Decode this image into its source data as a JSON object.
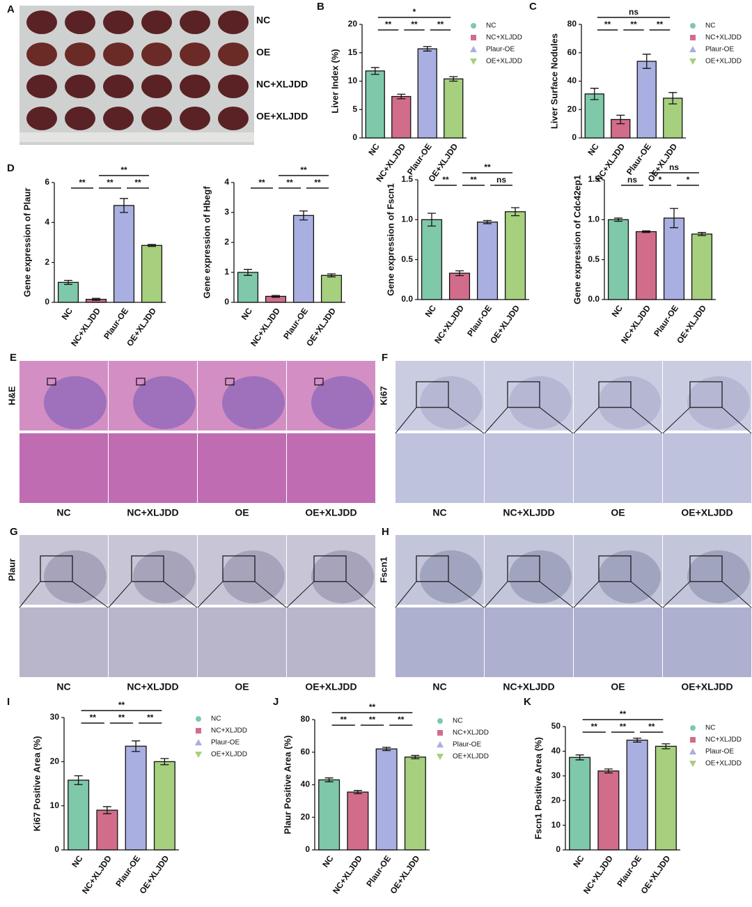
{
  "chart_data": [
    {
      "type": "bar",
      "panel": "B",
      "y_label": "Liver Index (%)",
      "categories": [
        "NC",
        "NC+XLJDD",
        "Plaur-OE",
        "OE+XLJDD"
      ],
      "values": [
        11.8,
        7.3,
        15.7,
        10.4
      ],
      "errors": [
        0.6,
        0.4,
        0.4,
        0.4
      ],
      "colors": [
        "#7fc8a9",
        "#d16d8a",
        "#a9afe0",
        "#a6cf7e"
      ],
      "ylim": [
        0,
        20
      ],
      "yticks": [
        0,
        5,
        10,
        15,
        20
      ],
      "legend": true,
      "significance": [
        {
          "groups": [
            "NC",
            "NC+XLJDD"
          ],
          "label": "**"
        },
        {
          "groups": [
            "NC+XLJDD",
            "Plaur-OE"
          ],
          "label": "**"
        },
        {
          "groups": [
            "Plaur-OE",
            "OE+XLJDD"
          ],
          "label": "**"
        },
        {
          "groups": [
            "NC",
            "OE+XLJDD"
          ],
          "label": "*"
        }
      ]
    },
    {
      "type": "bar",
      "panel": "C",
      "y_label": "Liver Surface Nodules",
      "categories": [
        "NC",
        "NC+XLJDD",
        "Plaur-OE",
        "OE+XLJDD"
      ],
      "values": [
        31,
        13,
        54,
        28
      ],
      "errors": [
        4,
        3,
        5,
        4
      ],
      "colors": [
        "#7fc8a9",
        "#d16d8a",
        "#a9afe0",
        "#a6cf7e"
      ],
      "ylim": [
        0,
        80
      ],
      "yticks": [
        0,
        20,
        40,
        60,
        80
      ],
      "legend": true,
      "significance": [
        {
          "groups": [
            "NC",
            "NC+XLJDD"
          ],
          "label": "**"
        },
        {
          "groups": [
            "NC+XLJDD",
            "Plaur-OE"
          ],
          "label": "**"
        },
        {
          "groups": [
            "Plaur-OE",
            "OE+XLJDD"
          ],
          "label": "**"
        },
        {
          "groups": [
            "NC",
            "OE+XLJDD"
          ],
          "label": "ns"
        }
      ]
    },
    {
      "type": "bar",
      "panel": "D",
      "y_label": "Gene expression of Plaur",
      "categories": [
        "NC",
        "NC+XLJDD",
        "Plaur-OE",
        "OE+XLJDD"
      ],
      "values": [
        1.0,
        0.15,
        4.85,
        2.85
      ],
      "errors": [
        0.1,
        0.05,
        0.35,
        0.05
      ],
      "colors": [
        "#7fc8a9",
        "#d16d8a",
        "#a9afe0",
        "#a6cf7e"
      ],
      "ylim": [
        0,
        6
      ],
      "yticks": [
        0,
        2,
        4,
        6
      ],
      "legend": false,
      "significance": [
        {
          "groups": [
            "NC",
            "NC+XLJDD"
          ],
          "label": "**"
        },
        {
          "groups": [
            "NC+XLJDD",
            "Plaur-OE"
          ],
          "label": "**"
        },
        {
          "groups": [
            "Plaur-OE",
            "OE+XLJDD"
          ],
          "label": "**"
        },
        {
          "groups": [
            "NC+XLJDD",
            "OE+XLJDD"
          ],
          "label": "**"
        }
      ]
    },
    {
      "type": "bar",
      "y_label": "Gene expression of Hbegf",
      "categories": [
        "NC",
        "NC+XLJDD",
        "Plaur-OE",
        "OE+XLJDD"
      ],
      "values": [
        1.0,
        0.2,
        2.9,
        0.9
      ],
      "errors": [
        0.1,
        0.03,
        0.15,
        0.05
      ],
      "colors": [
        "#7fc8a9",
        "#d16d8a",
        "#a9afe0",
        "#a6cf7e"
      ],
      "ylim": [
        0,
        4
      ],
      "yticks": [
        0,
        1,
        2,
        3,
        4
      ],
      "legend": false,
      "significance": [
        {
          "groups": [
            "NC",
            "NC+XLJDD"
          ],
          "label": "**"
        },
        {
          "groups": [
            "NC+XLJDD",
            "Plaur-OE"
          ],
          "label": "**"
        },
        {
          "groups": [
            "Plaur-OE",
            "OE+XLJDD"
          ],
          "label": "**"
        },
        {
          "groups": [
            "NC+XLJDD",
            "OE+XLJDD"
          ],
          "label": "**"
        }
      ]
    },
    {
      "type": "bar",
      "y_label": "Gene expression of Fscn1",
      "categories": [
        "NC",
        "NC+XLJDD",
        "Plaur-OE",
        "OE+XLJDD"
      ],
      "values": [
        1.0,
        0.33,
        0.97,
        1.1
      ],
      "errors": [
        0.08,
        0.03,
        0.02,
        0.05
      ],
      "colors": [
        "#7fc8a9",
        "#d16d8a",
        "#a9afe0",
        "#a6cf7e"
      ],
      "ylim": [
        0,
        1.5
      ],
      "yticks": [
        {
          "value": 0,
          "label": "0.0"
        },
        0.5,
        {
          "value": 1,
          "label": "1.0"
        },
        1.5
      ],
      "legend": false,
      "significance": [
        {
          "groups": [
            "NC",
            "NC+XLJDD"
          ],
          "label": "**"
        },
        {
          "groups": [
            "NC+XLJDD",
            "Plaur-OE"
          ],
          "label": "**"
        },
        {
          "groups": [
            "Plaur-OE",
            "OE+XLJDD"
          ],
          "label": "ns"
        },
        {
          "groups": [
            "NC+XLJDD",
            "OE+XLJDD"
          ],
          "label": "**"
        }
      ]
    },
    {
      "type": "bar",
      "y_label": "Gene expression of Cdc42ep1",
      "categories": [
        "NC",
        "NC+XLJDD",
        "Plaur-OE",
        "OE+XLJDD"
      ],
      "values": [
        1.0,
        0.85,
        1.02,
        0.82
      ],
      "errors": [
        0.02,
        0.01,
        0.12,
        0.02
      ],
      "colors": [
        "#7fc8a9",
        "#d16d8a",
        "#a9afe0",
        "#a6cf7e"
      ],
      "ylim": [
        0,
        1.5
      ],
      "yticks": [
        {
          "value": 0,
          "label": "0.0"
        },
        0.5,
        {
          "value": 1,
          "label": "1.0"
        },
        1.5
      ],
      "legend": false,
      "significance": [
        {
          "groups": [
            "NC",
            "NC+XLJDD"
          ],
          "label": "ns"
        },
        {
          "groups": [
            "NC+XLJDD",
            "Plaur-OE"
          ],
          "label": "*"
        },
        {
          "groups": [
            "Plaur-OE",
            "OE+XLJDD"
          ],
          "label": "*"
        },
        {
          "groups": [
            "NC+XLJDD",
            "OE+XLJDD"
          ],
          "label": "ns"
        }
      ]
    },
    {
      "type": "bar",
      "panel": "I",
      "y_label": "Ki67 Positive Area (%)",
      "categories": [
        "NC",
        "NC+XLJDD",
        "Plaur-OE",
        "OE+XLJDD"
      ],
      "values": [
        15.8,
        9.0,
        23.5,
        20.0
      ],
      "errors": [
        1,
        0.8,
        1.2,
        0.7
      ],
      "colors": [
        "#7fc8a9",
        "#d16d8a",
        "#a9afe0",
        "#a6cf7e"
      ],
      "ylim": [
        0,
        30
      ],
      "yticks": [
        0,
        10,
        20,
        30
      ],
      "legend": true,
      "significance": [
        {
          "groups": [
            "NC",
            "NC+XLJDD"
          ],
          "label": "**"
        },
        {
          "groups": [
            "NC+XLJDD",
            "Plaur-OE"
          ],
          "label": "**"
        },
        {
          "groups": [
            "Plaur-OE",
            "OE+XLJDD"
          ],
          "label": "**"
        },
        {
          "groups": [
            "NC",
            "OE+XLJDD"
          ],
          "label": "**"
        }
      ]
    },
    {
      "type": "bar",
      "panel": "J",
      "y_label": "Plaur Positive Area (%)",
      "categories": [
        "NC",
        "NC+XLJDD",
        "Plaur-OE",
        "OE+XLJDD"
      ],
      "values": [
        43,
        35.5,
        62,
        57
      ],
      "errors": [
        1.2,
        1,
        1,
        1
      ],
      "colors": [
        "#7fc8a9",
        "#d16d8a",
        "#a9afe0",
        "#a6cf7e"
      ],
      "ylim": [
        0,
        80
      ],
      "yticks": [
        0,
        20,
        40,
        60,
        80
      ],
      "legend": true,
      "significance": [
        {
          "groups": [
            "NC",
            "NC+XLJDD"
          ],
          "label": "**"
        },
        {
          "groups": [
            "NC+XLJDD",
            "Plaur-OE"
          ],
          "label": "**"
        },
        {
          "groups": [
            "Plaur-OE",
            "OE+XLJDD"
          ],
          "label": "**"
        },
        {
          "groups": [
            "NC",
            "OE+XLJDD"
          ],
          "label": "**"
        }
      ]
    },
    {
      "type": "bar",
      "panel": "K",
      "y_label": "Fscn1 Positive Area (%)",
      "categories": [
        "NC",
        "NC+XLJDD",
        "Plaur-OE",
        "OE+XLJDD"
      ],
      "values": [
        37.5,
        32,
        44.5,
        42
      ],
      "errors": [
        1,
        0.8,
        0.8,
        1
      ],
      "colors": [
        "#7fc8a9",
        "#d16d8a",
        "#a9afe0",
        "#a6cf7e"
      ],
      "ylim": [
        0,
        50
      ],
      "yticks": [
        0,
        10,
        20,
        30,
        40,
        50
      ],
      "legend": true,
      "significance": [
        {
          "groups": [
            "NC",
            "NC+XLJDD"
          ],
          "label": "**"
        },
        {
          "groups": [
            "NC+XLJDD",
            "Plaur-OE"
          ],
          "label": "**"
        },
        {
          "groups": [
            "Plaur-OE",
            "OE+XLJDD"
          ],
          "label": "**"
        },
        {
          "groups": [
            "NC",
            "OE+XLJDD"
          ],
          "label": "**"
        }
      ]
    }
  ],
  "image_panels": [
    {
      "panel": "A",
      "row_labels": [
        "NC",
        "OE",
        "NC+XLJDD",
        "OE+XLJDD"
      ]
    },
    {
      "panel": "E",
      "stain": "H&E",
      "column_labels": [
        "NC",
        "NC+XLJDD",
        "OE",
        "OE+XLJDD"
      ]
    },
    {
      "panel": "F",
      "stain": "Ki67",
      "column_labels": [
        "NC",
        "NC+XLJDD",
        "OE",
        "OE+XLJDD"
      ]
    },
    {
      "panel": "G",
      "stain": "Plaur",
      "column_labels": [
        "NC",
        "NC+XLJDD",
        "OE",
        "OE+XLJDD"
      ]
    },
    {
      "panel": "H",
      "stain": "Fscn1",
      "column_labels": [
        "NC",
        "NC+XLJDD",
        "OE",
        "OE+XLJDD"
      ]
    }
  ]
}
